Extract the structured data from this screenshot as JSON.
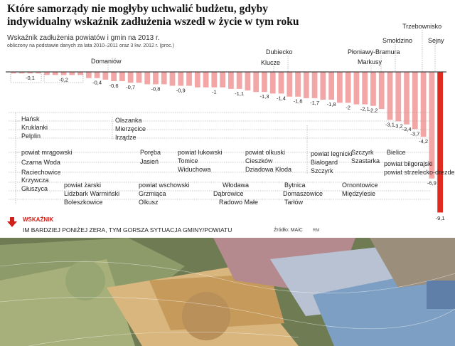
{
  "title": "Które samorządy nie mogłyby uchwalić budżetu, gdyby indywidualny wskaźnik zadłużenia wszedł w życie w tym roku",
  "subtitle": "Wskaźnik zadłużenia powiatów i gmin na 2013 r.",
  "subtitle2": "obliczony na podstawie danych za lata 2010–2011 oraz 3 kw. 2012 r. (proc.)",
  "legend": {
    "label": "WSKAŹNIK",
    "description": "IM BARDZIEJ PONIŻEJ ZERA, TYM GORSZA SYTUACJA GMINY/POWIATU"
  },
  "source": "Źródło: MAiC",
  "author": "RM",
  "colors": {
    "bar": "#f2a6a6",
    "bar_last": "#e02a20",
    "accent": "#d0211a"
  },
  "chart_data": {
    "type": "bar",
    "title": "Wskaźnik zadłużenia powiatów i gmin na 2013 r.",
    "ylabel": "proc.",
    "ylim": [
      -9.5,
      0
    ],
    "values": [
      -0.1,
      -0.1,
      -0.1,
      -0.1,
      -0.2,
      -0.2,
      -0.2,
      -0.2,
      -0.2,
      -0.4,
      -0.4,
      -0.5,
      -0.6,
      -0.6,
      -0.7,
      -0.7,
      -0.8,
      -0.8,
      -0.8,
      -0.9,
      -0.9,
      -0.9,
      -1,
      -1,
      -1,
      -1,
      -1.1,
      -1.1,
      -1.2,
      -1.3,
      -1.3,
      -1.4,
      -1.4,
      -1.6,
      -1.6,
      -1.7,
      -1.7,
      -1.8,
      -1.8,
      -2,
      -2,
      -2.1,
      -2.1,
      -2.2,
      -2.4,
      -3.1,
      -3.2,
      -3.4,
      -3.7,
      -4.2,
      -6.9,
      -9.1
    ],
    "value_labels": [
      {
        "text": "-0,1",
        "i": 2
      },
      {
        "text": "-0,2",
        "i": 6
      },
      {
        "text": "-0,4",
        "i": 10
      },
      {
        "text": "-0,6",
        "i": 12
      },
      {
        "text": "-0,7",
        "i": 14
      },
      {
        "text": "-0,8",
        "i": 17
      },
      {
        "text": "-0,9",
        "i": 20
      },
      {
        "text": "-1",
        "i": 24
      },
      {
        "text": "-1,1",
        "i": 27
      },
      {
        "text": "-1,3",
        "i": 30
      },
      {
        "text": "-1,4",
        "i": 32
      },
      {
        "text": "-1,6",
        "i": 34
      },
      {
        "text": "-1,7",
        "i": 36
      },
      {
        "text": "-1,8",
        "i": 38
      },
      {
        "text": "-2",
        "i": 40
      },
      {
        "text": "-2,1",
        "i": 42
      },
      {
        "text": "-2,2",
        "i": 43
      },
      {
        "text": "-3,1",
        "i": 45
      },
      {
        "text": "-3,2",
        "i": 46
      },
      {
        "text": "-3,4",
        "i": 47
      },
      {
        "text": "-3,7",
        "i": 48
      },
      {
        "text": "-4,2",
        "i": 49
      },
      {
        "text": "-6,9",
        "i": 50
      },
      {
        "text": "-9,1",
        "i": 51
      }
    ],
    "labels_top": [
      "Domaniów",
      "Dubiecko",
      "Klucze",
      "Płoniawy-Bramura",
      "Markusy",
      "Smołdzino",
      "Trzebownisko",
      "Sejny"
    ],
    "labels_bottom": [
      "Hańsk",
      "Kruklanki",
      "Pelplin",
      "powiat mrągowski",
      "Czarna Woda",
      "Raciechowice",
      "Krzywcza",
      "Głuszyca",
      "powiat żarski",
      "Lidzbark Warmiński",
      "Boleszkowice",
      "Olszanka",
      "Mierzęcice",
      "Irządze",
      "Poręba",
      "Jasień",
      "powiat wschowski",
      "Grzmiąca",
      "Olkusz",
      "powiat łukowski",
      "Tomice",
      "Widuchowa",
      "Włodawa",
      "Dąbrowice",
      "Radowo Małe",
      "powiat olkuski",
      "Cieszków",
      "Dziadowa Kłoda",
      "Bytnica",
      "Domaszowice",
      "Tarłów",
      "powiat legnicki",
      "Białogard",
      "Szczyrk",
      "Szastarka",
      "Ornontowice",
      "Międzylesie",
      "Bielice",
      "powiat bilgorajski",
      "powiat strzelecko-drezdenecki"
    ]
  }
}
